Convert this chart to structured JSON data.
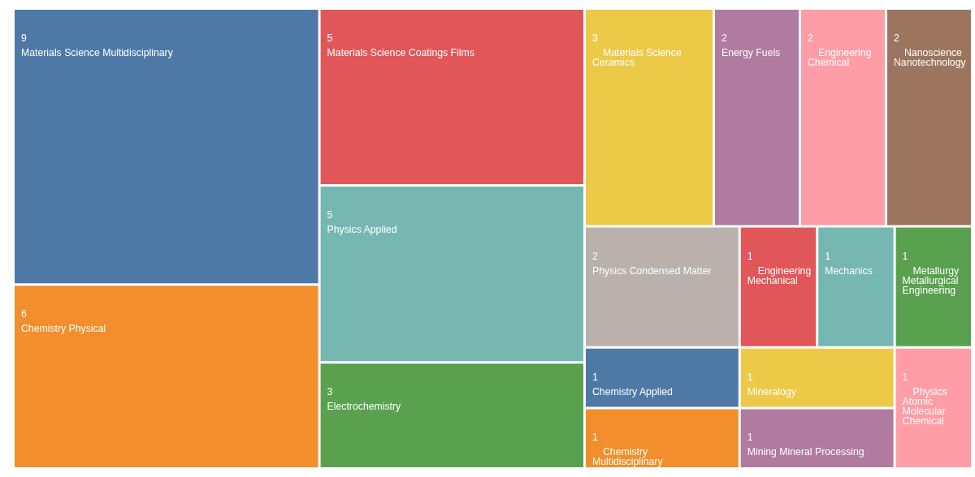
{
  "chart_data": {
    "type": "other",
    "categories": [
      "Materials Science Multidisciplinary",
      "Chemistry Physical",
      "Materials Science Coatings Films",
      "Physics Applied",
      "Electrochemistry",
      "Materials Science Ceramics",
      "Energy Fuels",
      "Engineering Chemical",
      "Nanoscience Nanotechnology",
      "Physics Condensed Matter",
      "Chemistry Applied",
      "Chemistry Multidisciplinary",
      "Engineering Mechanical",
      "Mechanics",
      "Metallurgy Metallurgical Engineering",
      "Mineralogy",
      "Mining Mineral Processing",
      "Physics Atomic Molecular Chemical"
    ],
    "values": [
      9,
      6,
      5,
      5,
      3,
      3,
      2,
      2,
      2,
      2,
      1,
      1,
      1,
      1,
      1,
      1,
      1,
      1
    ],
    "colors": [
      "#4e79a7",
      "#f28e2b",
      "#e15759",
      "#76b7b2",
      "#59a14f",
      "#edc948",
      "#b07aa1",
      "#ff9da7",
      "#9c755f",
      "#bab0ac",
      "#4e79a7",
      "#f28e2b",
      "#e15759",
      "#76b7b2",
      "#59a14f",
      "#edc948",
      "#b07aa1",
      "#ff9da7"
    ],
    "data_labels": true
  }
}
